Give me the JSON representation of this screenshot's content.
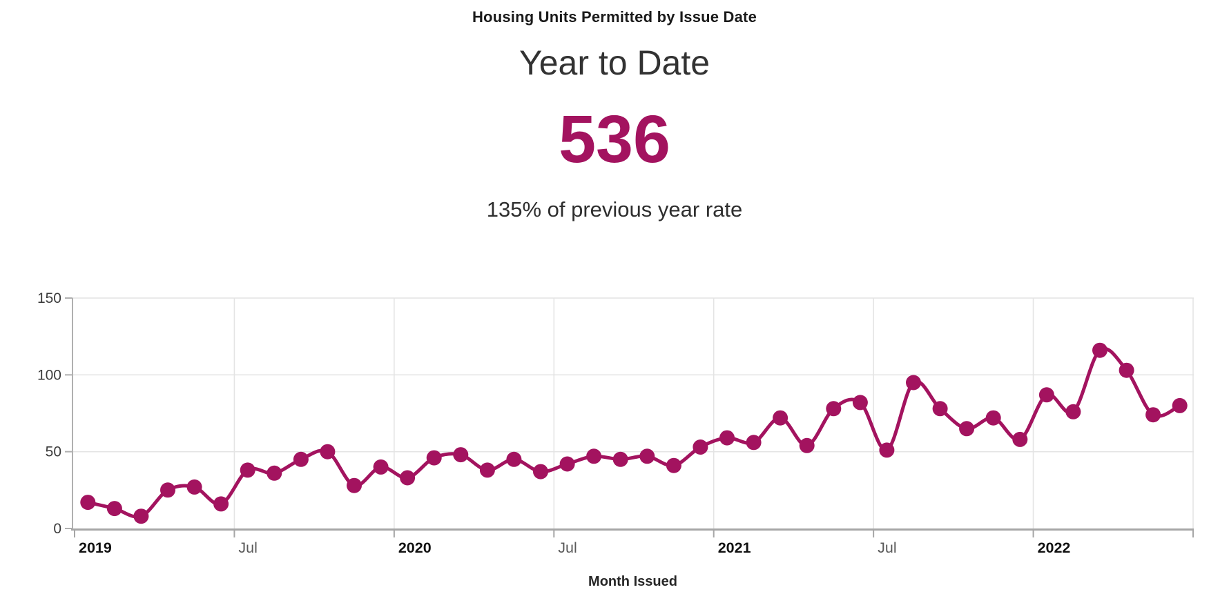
{
  "header": {
    "title": "Housing Units Permitted by Issue Date",
    "subtitle": "Year to Date",
    "value": "536",
    "comparison": "135% of previous year rate"
  },
  "colors": {
    "accent": "#a3135f",
    "grid": "#e4e4e4",
    "axis": "#a6a6a6",
    "y_axis": "#b0b0b0",
    "y_tick_label": "#3c3c3c",
    "year_label": "#111111",
    "jul_label": "#5a5a5a"
  },
  "chart_data": {
    "type": "line",
    "title": "",
    "xlabel": "Month Issued",
    "ylabel": "",
    "ylim": [
      0,
      150
    ],
    "y_ticks": [
      0,
      50,
      100,
      150
    ],
    "grid": true,
    "smooth": true,
    "marker": "circle",
    "x": [
      "2019-01",
      "2019-02",
      "2019-03",
      "2019-04",
      "2019-05",
      "2019-06",
      "2019-07",
      "2019-08",
      "2019-09",
      "2019-10",
      "2019-11",
      "2019-12",
      "2020-01",
      "2020-02",
      "2020-03",
      "2020-04",
      "2020-05",
      "2020-06",
      "2020-07",
      "2020-08",
      "2020-09",
      "2020-10",
      "2020-11",
      "2020-12",
      "2021-01",
      "2021-02",
      "2021-03",
      "2021-04",
      "2021-05",
      "2021-06",
      "2021-07",
      "2021-08",
      "2021-09",
      "2021-10",
      "2021-11",
      "2021-12",
      "2022-01",
      "2022-02",
      "2022-03",
      "2022-04",
      "2022-05",
      "2022-06"
    ],
    "values": [
      17,
      13,
      8,
      25,
      27,
      16,
      38,
      36,
      45,
      50,
      28,
      40,
      33,
      46,
      48,
      38,
      45,
      37,
      42,
      47,
      45,
      47,
      41,
      53,
      59,
      56,
      72,
      54,
      78,
      82,
      51,
      95,
      78,
      65,
      72,
      58,
      87,
      76,
      116,
      103,
      74,
      80
    ],
    "x_tick_labels": [
      {
        "label": "2019",
        "month_index": 0,
        "bold": true
      },
      {
        "label": "Jul",
        "month_index": 6,
        "bold": false
      },
      {
        "label": "2020",
        "month_index": 12,
        "bold": true
      },
      {
        "label": "Jul",
        "month_index": 18,
        "bold": false
      },
      {
        "label": "2021",
        "month_index": 24,
        "bold": true
      },
      {
        "label": "Jul",
        "month_index": 30,
        "bold": false
      },
      {
        "label": "2022",
        "month_index": 36,
        "bold": true
      }
    ]
  }
}
